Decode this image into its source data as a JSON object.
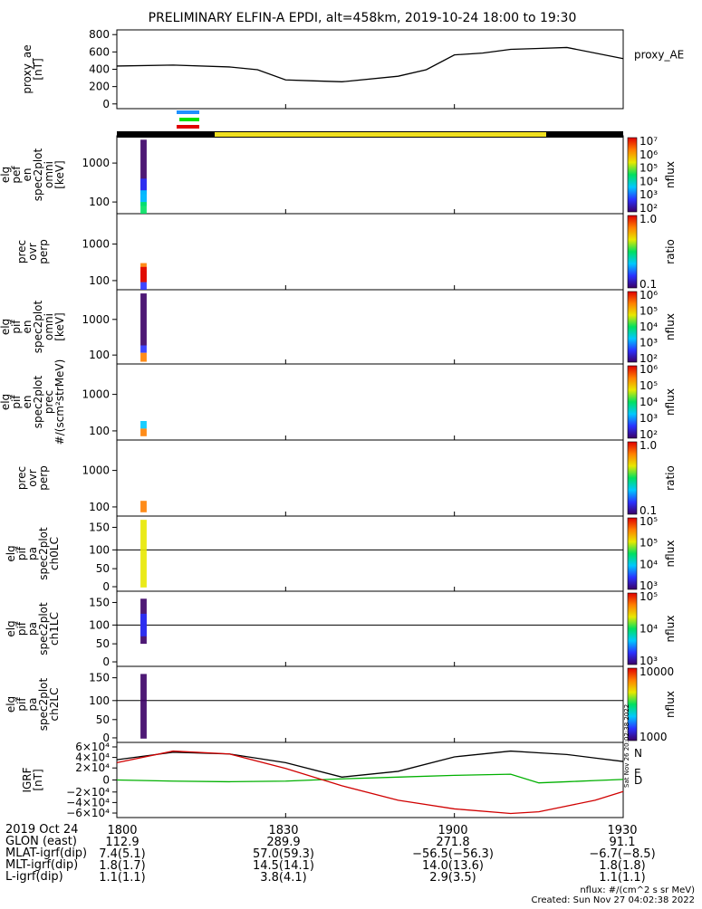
{
  "title": "PRELIMINARY ELFIN-A EPDI, alt=458km, 2019-10-24 18:00 to 19:30",
  "colors": {
    "axis": "#000000",
    "yellow_bar": "#f0e020",
    "black_bar": "#000000",
    "field_N": "#000000",
    "field_E": "#00b000",
    "field_D": "#d00000",
    "field_blue": "#0000cc",
    "mode_blue": "#1e90ff",
    "mode_green": "#00e000",
    "mode_red": "#e00000"
  },
  "panels": [
    {
      "id": "proxy_ae",
      "ylabel": [
        "proxy_ae",
        "[nT]"
      ],
      "right_label": "proxy_AE",
      "ticks": [
        "800",
        "600",
        "400",
        "200",
        "0"
      ]
    },
    {
      "id": "pef",
      "ylabel": [
        "elg",
        "pef",
        "en",
        "spec2plot",
        "omni",
        "[keV]"
      ],
      "ticks": [
        "1000",
        "100"
      ],
      "cbar_ticks": [
        "10⁷",
        "10⁶",
        "10⁵",
        "10⁴",
        "10³",
        "10²"
      ],
      "cbar_label": "nflux"
    },
    {
      "id": "pef_prec",
      "ylabel": [
        "prec",
        "ovr",
        "perp"
      ],
      "ticks": [
        "1000",
        "100"
      ],
      "cbar_ticks": [
        "1.0",
        "0.1"
      ],
      "cbar_label": "ratio"
    },
    {
      "id": "pif",
      "ylabel": [
        "elg",
        "pif",
        "en",
        "spec2plot",
        "omni",
        "[keV]"
      ],
      "ticks": [
        "1000",
        "100"
      ],
      "cbar_ticks": [
        "10⁶",
        "10⁵",
        "10⁴",
        "10³",
        "10²"
      ],
      "cbar_label": "nflux"
    },
    {
      "id": "pif_prec",
      "ylabel": [
        "elg",
        "pif",
        "en",
        "spec2plot",
        "prec",
        "#/(scm²strMeV)"
      ],
      "ticks": [
        "1000",
        "100"
      ],
      "cbar_ticks": [
        "10⁶",
        "10⁵",
        "10⁴",
        "10³",
        "10²"
      ],
      "cbar_label": "nflux"
    },
    {
      "id": "pif_ratio",
      "ylabel": [
        "prec",
        "ovr",
        "perp"
      ],
      "ticks": [
        "1000",
        "100"
      ],
      "cbar_ticks": [
        "1.0",
        "0.1"
      ],
      "cbar_label": "ratio"
    },
    {
      "id": "ch0",
      "ylabel": [
        "elg",
        "pif",
        "pa",
        "spec2plot",
        "ch0LC"
      ],
      "ticks": [
        "150",
        "100",
        "50",
        "0"
      ],
      "cbar_ticks": [
        "10⁵",
        "10⁵",
        "10⁴",
        "10³"
      ],
      "cbar_label": "nflux"
    },
    {
      "id": "ch1",
      "ylabel": [
        "elg",
        "pif",
        "pa",
        "spec2plot",
        "ch1LC"
      ],
      "ticks": [
        "150",
        "100",
        "50",
        "0"
      ],
      "cbar_ticks": [
        "10⁵",
        "10⁴",
        "10³"
      ],
      "cbar_label": "nflux"
    },
    {
      "id": "ch2",
      "ylabel": [
        "elg",
        "pif",
        "pa",
        "spec2plot",
        "ch2LC"
      ],
      "ticks": [
        "150",
        "100",
        "50",
        "0"
      ],
      "cbar_ticks": [
        "10000",
        "1000"
      ],
      "cbar_label": "nflux"
    },
    {
      "id": "igrf",
      "ylabel": [
        "IGRF",
        "[nT]"
      ],
      "ticks": [
        "6×10⁴",
        "4×10⁴",
        "2×10⁴",
        "0",
        "−2×10⁴",
        "−4×10⁴",
        "−6×10⁴"
      ],
      "legend": [
        "N",
        "E",
        "D"
      ]
    }
  ],
  "chart_data": {
    "type": "line",
    "title": "PRELIMINARY ELFIN-A EPDI, alt=458km, 2019-10-24 18:00 to 19:30",
    "x_ticks": [
      "1800",
      "1830",
      "1900",
      "1930"
    ],
    "proxy_ae": {
      "name": "proxy_AE",
      "ylim": [
        0,
        850
      ],
      "x_minutes": [
        0,
        10,
        20,
        25,
        30,
        35,
        40,
        50,
        55,
        60,
        65,
        70,
        75,
        80,
        90
      ],
      "values": [
        460,
        470,
        450,
        420,
        310,
        300,
        290,
        350,
        420,
        580,
        600,
        640,
        650,
        660,
        540
      ]
    },
    "igrf": {
      "ylim": [
        -65000,
        65000
      ],
      "x_minutes": [
        0,
        10,
        20,
        30,
        40,
        50,
        60,
        70,
        75,
        80,
        85,
        90
      ],
      "series": [
        {
          "name": "N",
          "values": [
            35000,
            48000,
            45000,
            30000,
            5000,
            15000,
            40000,
            50000,
            47000,
            44000,
            38000,
            32000
          ]
        },
        {
          "name": "E",
          "values": [
            0,
            -2000,
            -3000,
            -2000,
            2000,
            5000,
            8000,
            10000,
            -5000,
            -3000,
            -1000,
            1000
          ]
        },
        {
          "name": "D",
          "values": [
            30000,
            50000,
            45000,
            20000,
            -10000,
            -35000,
            -50000,
            -58000,
            -55000,
            -45000,
            -35000,
            -20000
          ]
        }
      ]
    }
  },
  "footer": {
    "row_labels": [
      "2019 Oct 24",
      "GLON (east)",
      "MLAT-igrf(dip)",
      "MLT-igrf(dip)",
      "L-igrf(dip)"
    ],
    "cols": [
      [
        "1800",
        "112.9",
        "7.4(5.1)",
        "1.8(1.7)",
        "1.1(1.1)"
      ],
      [
        "1830",
        "289.9",
        "57.0(59.3)",
        "14.5(14.1)",
        "3.8(4.1)"
      ],
      [
        "1900",
        "271.8",
        "−56.5(−56.3)",
        "14.0(13.6)",
        "2.9(3.5)"
      ],
      [
        "1930",
        "91.1",
        "−6.7(−8.5)",
        "1.8(1.8)",
        "1.1(1.1)"
      ]
    ],
    "units_note": "nflux: #/(cm^2 s sr MeV)",
    "created": "Created: Sun Nov 27 04:02:38 2022",
    "side_stamp": "Sat Nov 26 20:02:38 2022"
  }
}
